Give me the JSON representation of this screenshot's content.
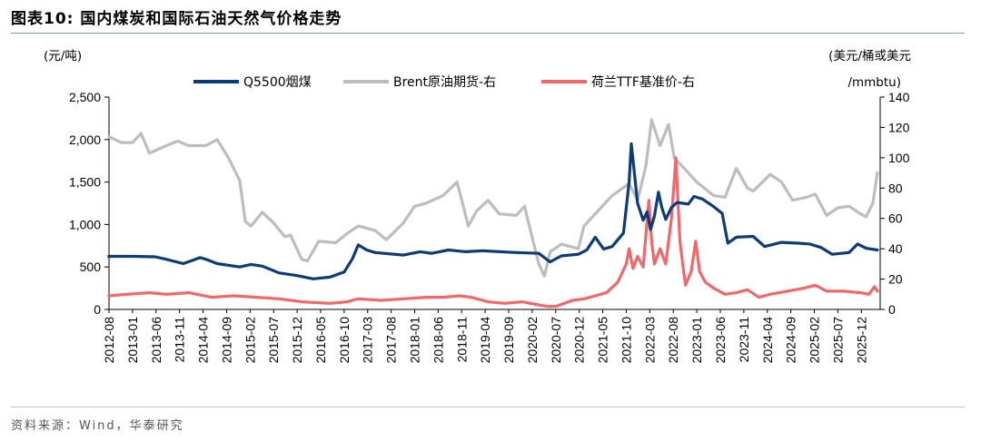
{
  "header": {
    "figure_title": "图表10:  国内煤炭和国际石油天然气价格走势"
  },
  "footer": {
    "source": "资料来源：Wind，华泰研究"
  },
  "chart_data": {
    "type": "line",
    "title": "国内煤炭和国际石油天然气价格走势",
    "left_unit": "(元/吨)",
    "right_unit_line1": "(美元/桶或美元",
    "right_unit_line2": "/mmbtu)",
    "y_left": {
      "min": 0,
      "max": 2500,
      "ticks": [
        0,
        500,
        1000,
        1500,
        2000,
        2500
      ],
      "tick_labels": [
        "0",
        "500",
        "1,000",
        "1,500",
        "2,000",
        "2,500"
      ]
    },
    "y_right": {
      "min": 0,
      "max": 140,
      "ticks": [
        0,
        20,
        40,
        60,
        80,
        100,
        120,
        140
      ],
      "tick_labels": [
        "0",
        "20",
        "40",
        "60",
        "80",
        "100",
        "120",
        "140"
      ]
    },
    "x_range": [
      2012.583,
      2026.25
    ],
    "x_tick_labels": [
      "2012-08",
      "2013-01",
      "2013-06",
      "2013-11",
      "2014-04",
      "2014-09",
      "2015-02",
      "2015-07",
      "2015-12",
      "2016-05",
      "2016-10",
      "2017-03",
      "2017-08",
      "2018-01",
      "2018-06",
      "2018-11",
      "2019-04",
      "2019-09",
      "2020-02",
      "2020-07",
      "2020-12",
      "2021-05",
      "2021-10",
      "2022-03",
      "2022-08",
      "2023-01",
      "2023-06",
      "2023-11",
      "2024-04",
      "2024-09",
      "2025-02",
      "2025-07",
      "2025-12"
    ],
    "legend": [
      {
        "name": "Q5500烟煤",
        "color": "#0d3b7a"
      },
      {
        "name": "Brent原油期货-右",
        "color": "#bdbdbd"
      },
      {
        "name": "荷兰TTF基准价-右",
        "color": "#f0686a"
      }
    ],
    "series": [
      {
        "name": "Q5500烟煤",
        "axis": "left",
        "color": "#0d3b7a",
        "points": [
          [
            2012.58,
            625
          ],
          [
            2013.0,
            625
          ],
          [
            2013.4,
            620
          ],
          [
            2013.6,
            590
          ],
          [
            2013.9,
            540
          ],
          [
            2014.2,
            610
          ],
          [
            2014.3,
            590
          ],
          [
            2014.5,
            540
          ],
          [
            2014.9,
            500
          ],
          [
            2015.1,
            530
          ],
          [
            2015.3,
            510
          ],
          [
            2015.6,
            430
          ],
          [
            2015.9,
            400
          ],
          [
            2016.2,
            360
          ],
          [
            2016.5,
            380
          ],
          [
            2016.75,
            440
          ],
          [
            2016.9,
            600
          ],
          [
            2017.0,
            760
          ],
          [
            2017.15,
            700
          ],
          [
            2017.3,
            670
          ],
          [
            2017.8,
            640
          ],
          [
            2018.1,
            680
          ],
          [
            2018.3,
            660
          ],
          [
            2018.6,
            700
          ],
          [
            2018.9,
            680
          ],
          [
            2019.2,
            690
          ],
          [
            2019.8,
            670
          ],
          [
            2020.2,
            660
          ],
          [
            2020.4,
            560
          ],
          [
            2020.6,
            630
          ],
          [
            2020.9,
            650
          ],
          [
            2021.05,
            700
          ],
          [
            2021.2,
            850
          ],
          [
            2021.35,
            710
          ],
          [
            2021.5,
            740
          ],
          [
            2021.7,
            900
          ],
          [
            2021.8,
            1500
          ],
          [
            2021.84,
            1950
          ],
          [
            2021.88,
            1700
          ],
          [
            2021.95,
            1250
          ],
          [
            2022.05,
            1050
          ],
          [
            2022.12,
            1150
          ],
          [
            2022.18,
            940
          ],
          [
            2022.25,
            1100
          ],
          [
            2022.32,
            1380
          ],
          [
            2022.38,
            1200
          ],
          [
            2022.45,
            1060
          ],
          [
            2022.55,
            1200
          ],
          [
            2022.65,
            1260
          ],
          [
            2022.75,
            1250
          ],
          [
            2022.85,
            1240
          ],
          [
            2022.95,
            1330
          ],
          [
            2023.1,
            1300
          ],
          [
            2023.3,
            1210
          ],
          [
            2023.45,
            1130
          ],
          [
            2023.55,
            780
          ],
          [
            2023.7,
            850
          ],
          [
            2024.0,
            860
          ],
          [
            2024.2,
            740
          ],
          [
            2024.5,
            790
          ],
          [
            2024.8,
            780
          ],
          [
            2025.0,
            770
          ],
          [
            2025.2,
            730
          ],
          [
            2025.4,
            650
          ],
          [
            2025.7,
            670
          ],
          [
            2025.85,
            770
          ],
          [
            2026.0,
            720
          ],
          [
            2026.2,
            700
          ]
        ]
      },
      {
        "name": "Brent原油期货-右",
        "axis": "right",
        "color": "#bdbdbd",
        "points": [
          [
            2012.58,
            114
          ],
          [
            2012.8,
            110
          ],
          [
            2013.0,
            110
          ],
          [
            2013.15,
            116
          ],
          [
            2013.3,
            103
          ],
          [
            2013.6,
            108
          ],
          [
            2013.8,
            111
          ],
          [
            2014.0,
            108
          ],
          [
            2014.3,
            108
          ],
          [
            2014.5,
            112
          ],
          [
            2014.7,
            100
          ],
          [
            2014.9,
            85
          ],
          [
            2015.0,
            58
          ],
          [
            2015.1,
            55
          ],
          [
            2015.3,
            64
          ],
          [
            2015.5,
            57
          ],
          [
            2015.7,
            48
          ],
          [
            2015.8,
            49
          ],
          [
            2016.0,
            33
          ],
          [
            2016.1,
            32
          ],
          [
            2016.3,
            45
          ],
          [
            2016.6,
            44
          ],
          [
            2016.8,
            50
          ],
          [
            2017.0,
            55
          ],
          [
            2017.3,
            52
          ],
          [
            2017.5,
            46
          ],
          [
            2017.8,
            57
          ],
          [
            2018.0,
            68
          ],
          [
            2018.2,
            70
          ],
          [
            2018.5,
            75
          ],
          [
            2018.75,
            84
          ],
          [
            2018.85,
            70
          ],
          [
            2018.95,
            55
          ],
          [
            2019.1,
            65
          ],
          [
            2019.3,
            72
          ],
          [
            2019.5,
            63
          ],
          [
            2019.8,
            62
          ],
          [
            2019.95,
            68
          ],
          [
            2020.0,
            60
          ],
          [
            2020.2,
            30
          ],
          [
            2020.3,
            22
          ],
          [
            2020.4,
            38
          ],
          [
            2020.6,
            43
          ],
          [
            2020.9,
            40
          ],
          [
            2021.0,
            55
          ],
          [
            2021.3,
            67
          ],
          [
            2021.5,
            75
          ],
          [
            2021.8,
            83
          ],
          [
            2021.95,
            72
          ],
          [
            2022.1,
            95
          ],
          [
            2022.2,
            125
          ],
          [
            2022.35,
            108
          ],
          [
            2022.5,
            122
          ],
          [
            2022.6,
            100
          ],
          [
            2022.8,
            92
          ],
          [
            2023.0,
            84
          ],
          [
            2023.3,
            75
          ],
          [
            2023.5,
            74
          ],
          [
            2023.7,
            93
          ],
          [
            2023.9,
            80
          ],
          [
            2024.0,
            78
          ],
          [
            2024.3,
            89
          ],
          [
            2024.5,
            84
          ],
          [
            2024.7,
            72
          ],
          [
            2024.95,
            74
          ],
          [
            2025.1,
            76
          ],
          [
            2025.3,
            62
          ],
          [
            2025.5,
            67
          ],
          [
            2025.7,
            68
          ],
          [
            2025.9,
            63
          ],
          [
            2026.0,
            61
          ],
          [
            2026.12,
            70
          ],
          [
            2026.2,
            90
          ]
        ]
      },
      {
        "name": "荷兰TTF基准价-右",
        "axis": "right",
        "color": "#f0686a",
        "points": [
          [
            2012.58,
            9
          ],
          [
            2012.9,
            10
          ],
          [
            2013.3,
            11
          ],
          [
            2013.6,
            10
          ],
          [
            2014.0,
            11
          ],
          [
            2014.4,
            8
          ],
          [
            2014.8,
            9
          ],
          [
            2015.2,
            8
          ],
          [
            2015.6,
            7
          ],
          [
            2016.0,
            5
          ],
          [
            2016.5,
            4
          ],
          [
            2016.8,
            5
          ],
          [
            2017.0,
            7
          ],
          [
            2017.4,
            6
          ],
          [
            2017.8,
            7
          ],
          [
            2018.2,
            8
          ],
          [
            2018.5,
            8
          ],
          [
            2018.8,
            9
          ],
          [
            2019.0,
            8
          ],
          [
            2019.3,
            5
          ],
          [
            2019.6,
            4
          ],
          [
            2019.9,
            5
          ],
          [
            2020.2,
            3
          ],
          [
            2020.35,
            2
          ],
          [
            2020.5,
            2
          ],
          [
            2020.8,
            6
          ],
          [
            2021.0,
            7
          ],
          [
            2021.2,
            9
          ],
          [
            2021.4,
            11
          ],
          [
            2021.6,
            18
          ],
          [
            2021.75,
            30
          ],
          [
            2021.8,
            40
          ],
          [
            2021.87,
            27
          ],
          [
            2021.95,
            35
          ],
          [
            2022.05,
            28
          ],
          [
            2022.15,
            72
          ],
          [
            2022.2,
            45
          ],
          [
            2022.25,
            30
          ],
          [
            2022.35,
            40
          ],
          [
            2022.45,
            30
          ],
          [
            2022.55,
            60
          ],
          [
            2022.63,
            100
          ],
          [
            2022.7,
            45
          ],
          [
            2022.75,
            30
          ],
          [
            2022.8,
            16
          ],
          [
            2022.9,
            25
          ],
          [
            2022.98,
            45
          ],
          [
            2023.05,
            25
          ],
          [
            2023.15,
            18
          ],
          [
            2023.3,
            14
          ],
          [
            2023.5,
            10
          ],
          [
            2023.7,
            11
          ],
          [
            2023.9,
            13
          ],
          [
            2024.1,
            8
          ],
          [
            2024.3,
            10
          ],
          [
            2024.6,
            12
          ],
          [
            2024.9,
            14
          ],
          [
            2025.1,
            16
          ],
          [
            2025.3,
            12
          ],
          [
            2025.6,
            12
          ],
          [
            2025.9,
            11
          ],
          [
            2026.05,
            10
          ],
          [
            2026.15,
            15
          ],
          [
            2026.2,
            12
          ]
        ]
      }
    ]
  }
}
